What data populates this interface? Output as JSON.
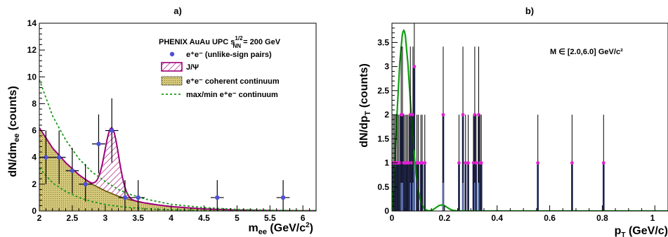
{
  "chart_data": [
    {
      "type": "scatter",
      "title": "a)",
      "xlabel": "m",
      "xlabel_sub": "ee",
      "xlabel_unit": "(GeV/c",
      "xlabel_unit_sup": "2",
      "xlabel_tail": ")",
      "ylabel": "dN/dm",
      "ylabel_sub": "ee",
      "ylabel_tail": "(counts)",
      "xlim": [
        2.0,
        6.2
      ],
      "ylim": [
        0,
        14
      ],
      "xticks": [
        2,
        2.5,
        3,
        3.5,
        4,
        4.5,
        5,
        5.5,
        6
      ],
      "xtick_labels": [
        "2",
        "2.5",
        "3",
        "3.5",
        "4",
        "4.5",
        "5",
        "5.5",
        "6"
      ],
      "yticks": [
        0,
        2,
        4,
        6,
        8,
        10,
        12,
        14
      ],
      "ytick_labels": [
        "0",
        "2",
        "4",
        "6",
        "8",
        "10",
        "12",
        "14"
      ],
      "legend": {
        "header_main": "PHENIX AuAu UPC s",
        "header_sup": "1/2",
        "header_sub": "NN",
        "header_tail": " = 200 GeV",
        "entries": [
          {
            "key": "data",
            "label": "e⁺e⁻ (unlike-sign pairs)"
          },
          {
            "key": "jpsi",
            "label": "J/Ψ"
          },
          {
            "key": "continuum",
            "label": "e⁺e⁻ coherent continuum"
          },
          {
            "key": "maxmin",
            "label": "max/min e⁺e⁻ continuum"
          }
        ]
      },
      "points": [
        {
          "x": 2.1,
          "y": 4,
          "yerr": [
            2,
            2
          ],
          "xerr": 0.1
        },
        {
          "x": 2.3,
          "y": 4,
          "yerr": [
            2,
            2
          ],
          "xerr": 0.1
        },
        {
          "x": 2.5,
          "y": 3,
          "yerr": [
            1.7,
            1.7
          ],
          "xerr": 0.1
        },
        {
          "x": 2.7,
          "y": 2,
          "yerr": [
            1.3,
            1.5
          ],
          "xerr": 0.1
        },
        {
          "x": 2.9,
          "y": 5,
          "yerr": [
            2.2,
            2.2
          ],
          "xerr": 0.1
        },
        {
          "x": 3.1,
          "y": 6,
          "yerr": [
            2.4,
            2.4
          ],
          "xerr": 0.1
        },
        {
          "x": 3.3,
          "y": 1,
          "yerr": [
            1,
            1.3
          ],
          "xerr": 0.1
        },
        {
          "x": 3.5,
          "y": 1,
          "yerr": [
            1,
            1.3
          ],
          "xerr": 0.1
        },
        {
          "x": 4.7,
          "y": 1,
          "yerr": [
            1,
            1.3
          ],
          "xerr": 0.1
        },
        {
          "x": 5.7,
          "y": 1,
          "yerr": [
            1,
            1.3
          ],
          "xerr": 0.1
        }
      ],
      "continuum_curve": {
        "x": [
          2.0,
          2.2,
          2.4,
          2.6,
          2.8,
          3.0,
          3.2,
          3.4,
          3.6,
          3.8,
          4.0,
          4.5,
          5.0,
          5.5,
          6.0
        ],
        "y": [
          6.2,
          4.7,
          3.6,
          2.7,
          2.0,
          1.5,
          1.1,
          0.8,
          0.6,
          0.45,
          0.33,
          0.15,
          0.07,
          0.03,
          0.015
        ]
      },
      "jpsi_peak": {
        "mean": 3.1,
        "sigma": 0.105,
        "amplitude": 4.9
      },
      "maxmin_upper": {
        "x": [
          2.0,
          2.2,
          2.4,
          2.6,
          2.8,
          3.0,
          3.2,
          3.4,
          3.6,
          3.8,
          4.0,
          4.5,
          5.0,
          5.5,
          6.0
        ],
        "y": [
          9.8,
          7.1,
          5.3,
          3.9,
          2.9,
          2.2,
          1.6,
          1.2,
          0.9,
          0.7,
          0.5,
          0.25,
          0.12,
          0.06,
          0.03
        ]
      },
      "maxmin_lower": {
        "x": [
          2.0,
          2.2,
          2.4,
          2.6,
          2.8,
          3.0,
          3.2,
          3.4,
          3.6,
          3.8,
          4.0,
          4.5,
          5.0,
          5.5,
          6.0
        ],
        "y": [
          3.2,
          2.1,
          1.45,
          1.0,
          0.7,
          0.48,
          0.34,
          0.24,
          0.17,
          0.12,
          0.09,
          0.04,
          0.02,
          0.01,
          0.005
        ]
      },
      "colors": {
        "data": "#5050d8",
        "jpsi": "#a0007a",
        "continuum_fill": "#d2c77a",
        "continuum_line": "#6b4a08",
        "maxmin": "#1a9a1a"
      }
    },
    {
      "type": "bar",
      "title": "b)",
      "annotation": "M ∈ [2.0,6.0] GeV/c²",
      "xlabel": "p",
      "xlabel_sub": "T",
      "xlabel_tail": " (GeV/c)",
      "ylabel": "dN/dp",
      "ylabel_sub": "T",
      "ylabel_tail": " (counts)",
      "xlim": [
        0,
        1.05
      ],
      "ylim": [
        0,
        3.9
      ],
      "xticks": [
        0,
        0.2,
        0.4,
        0.6,
        0.8,
        1.0
      ],
      "xtick_labels": [
        "0",
        "0.2",
        "0.4",
        "0.6",
        "0.8",
        "1"
      ],
      "yticks": [
        0,
        0.5,
        1,
        1.5,
        2,
        2.5,
        3,
        3.5
      ],
      "ytick_labels": [
        "0",
        "0.5",
        "1",
        "1.5",
        "2",
        "2.5",
        "3",
        "3.5"
      ],
      "bin_width": 0.005,
      "bins": [
        {
          "x": 0.005,
          "y": 1
        },
        {
          "x": 0.01,
          "y": 1
        },
        {
          "x": 0.015,
          "y": 1
        },
        {
          "x": 0.02,
          "y": 1
        },
        {
          "x": 0.025,
          "y": 1
        },
        {
          "x": 0.03,
          "y": 1
        },
        {
          "x": 0.035,
          "y": 2
        },
        {
          "x": 0.04,
          "y": 2
        },
        {
          "x": 0.045,
          "y": 1
        },
        {
          "x": 0.05,
          "y": 1
        },
        {
          "x": 0.055,
          "y": 1
        },
        {
          "x": 0.06,
          "y": 1
        },
        {
          "x": 0.065,
          "y": 1
        },
        {
          "x": 0.07,
          "y": 2
        },
        {
          "x": 0.075,
          "y": 1
        },
        {
          "x": 0.08,
          "y": 2
        },
        {
          "x": 0.085,
          "y": 3
        },
        {
          "x": 0.095,
          "y": 1
        },
        {
          "x": 0.1,
          "y": 1
        },
        {
          "x": 0.11,
          "y": 1
        },
        {
          "x": 0.115,
          "y": 1
        },
        {
          "x": 0.125,
          "y": 1
        },
        {
          "x": 0.195,
          "y": 2
        },
        {
          "x": 0.255,
          "y": 1
        },
        {
          "x": 0.27,
          "y": 2
        },
        {
          "x": 0.28,
          "y": 1
        },
        {
          "x": 0.29,
          "y": 1
        },
        {
          "x": 0.31,
          "y": 1
        },
        {
          "x": 0.315,
          "y": 2
        },
        {
          "x": 0.32,
          "y": 1
        },
        {
          "x": 0.33,
          "y": 2
        },
        {
          "x": 0.335,
          "y": 1
        },
        {
          "x": 0.34,
          "y": 1
        },
        {
          "x": 0.555,
          "y": 1
        },
        {
          "x": 0.685,
          "y": 1
        },
        {
          "x": 0.805,
          "y": 1
        }
      ],
      "fit_curve": {
        "x": [
          0,
          0.01,
          0.02,
          0.03,
          0.04,
          0.045,
          0.05,
          0.06,
          0.07,
          0.08,
          0.09,
          0.1,
          0.11,
          0.12,
          0.13,
          0.14,
          0.15,
          0.16,
          0.17,
          0.18,
          0.19,
          0.2,
          0.21,
          0.22,
          0.23,
          0.25,
          0.3,
          0.4,
          0.6,
          0.8,
          1.0,
          1.05
        ],
        "y": [
          0,
          0.9,
          2.1,
          3.1,
          3.7,
          3.75,
          3.7,
          3.1,
          2.3,
          1.5,
          0.85,
          0.43,
          0.19,
          0.07,
          0.02,
          0.004,
          0.01,
          0.04,
          0.08,
          0.115,
          0.125,
          0.11,
          0.075,
          0.04,
          0.015,
          0.002,
          0,
          0,
          0,
          0,
          0,
          0
        ]
      },
      "colors": {
        "bar_fill": "#7fa0da",
        "bar_edge": "#2a2f68",
        "marker": "#e020d0",
        "error": "#000000",
        "fit": "#10a010"
      }
    }
  ]
}
